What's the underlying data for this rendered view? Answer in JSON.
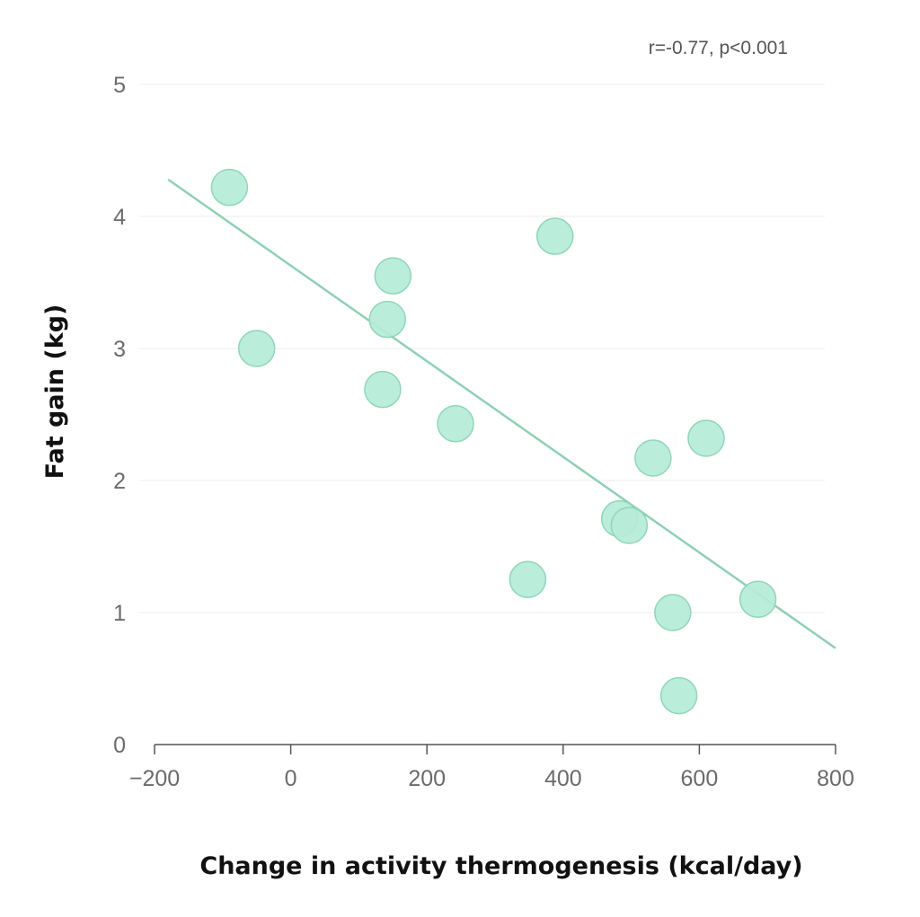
{
  "chart_data": {
    "type": "scatter",
    "title": "",
    "xlabel": "Change in activity thermogenesis (kcal/day)",
    "ylabel": "Fat gain (kg)",
    "annotation": "r=-0.77, p<0.001",
    "xlim": [
      -200,
      800
    ],
    "ylim": [
      0,
      5
    ],
    "xticks": [
      -200,
      0,
      200,
      400,
      600,
      800
    ],
    "xtick_labels": [
      "−200",
      "0",
      "200",
      "400",
      "600",
      "800"
    ],
    "yticks": [
      0,
      1,
      2,
      3,
      4,
      5
    ],
    "ytick_labels": [
      "0",
      "1",
      "2",
      "3",
      "4",
      "5"
    ],
    "grid": "horizontal",
    "legend": "none",
    "colors": {
      "point_fill": "#b5ecd8",
      "point_stroke": "#8fd6b9",
      "trendline": "#8fd0b3",
      "grid": "#eeeeee",
      "axis": "#555555"
    },
    "points": [
      {
        "x": -90,
        "y": 4.22
      },
      {
        "x": -50,
        "y": 3.0
      },
      {
        "x": 135,
        "y": 2.69
      },
      {
        "x": 142,
        "y": 3.22
      },
      {
        "x": 150,
        "y": 3.55
      },
      {
        "x": 242,
        "y": 2.43
      },
      {
        "x": 348,
        "y": 1.25
      },
      {
        "x": 388,
        "y": 3.85
      },
      {
        "x": 483,
        "y": 1.71
      },
      {
        "x": 497,
        "y": 1.66
      },
      {
        "x": 532,
        "y": 2.17
      },
      {
        "x": 561,
        "y": 1.0
      },
      {
        "x": 570,
        "y": 0.37
      },
      {
        "x": 610,
        "y": 2.32
      },
      {
        "x": 686,
        "y": 1.1
      }
    ],
    "trendline": {
      "x": [
        -180,
        800
      ],
      "y": [
        4.28,
        0.73
      ]
    }
  }
}
